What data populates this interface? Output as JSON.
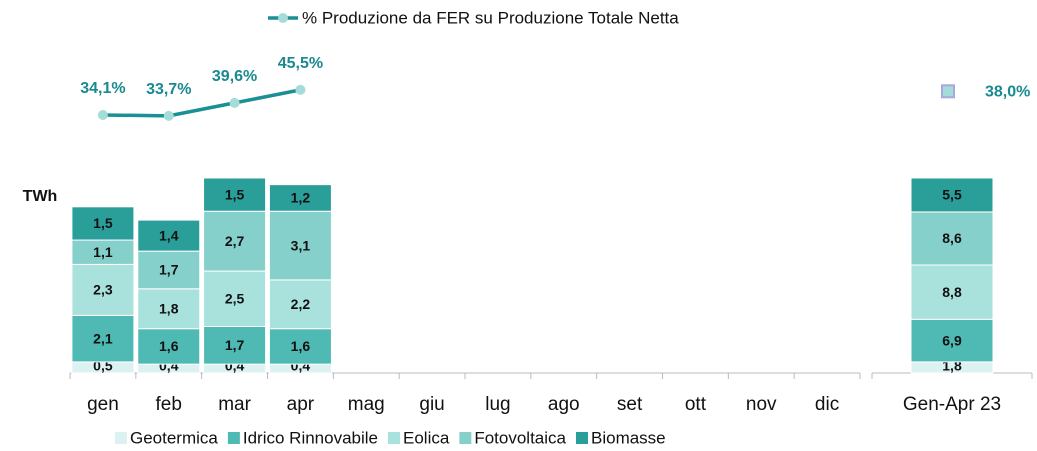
{
  "chart_data": [
    {
      "type": "bar",
      "stacked": true,
      "y_label": "TWh",
      "categories": [
        "gen",
        "feb",
        "mar",
        "apr",
        "mag",
        "giu",
        "lug",
        "ago",
        "set",
        "ott",
        "nov",
        "dic"
      ],
      "series": [
        {
          "name": "Geotermica",
          "color": "#dcf1f1",
          "values": [
            0.5,
            0.4,
            0.4,
            0.4,
            null,
            null,
            null,
            null,
            null,
            null,
            null,
            null
          ],
          "value_labels": [
            "0,5",
            "0,4",
            "0,4",
            "0,4",
            null,
            null,
            null,
            null,
            null,
            null,
            null,
            null
          ]
        },
        {
          "name": "Idrico Rinnovabile",
          "color": "#4fb9b4",
          "values": [
            2.1,
            1.6,
            1.7,
            1.6,
            null,
            null,
            null,
            null,
            null,
            null,
            null,
            null
          ],
          "value_labels": [
            "2,1",
            "1,6",
            "1,7",
            "1,6",
            null,
            null,
            null,
            null,
            null,
            null,
            null,
            null
          ]
        },
        {
          "name": "Eolica",
          "color": "#a9e1dd",
          "values": [
            2.3,
            1.8,
            2.5,
            2.2,
            null,
            null,
            null,
            null,
            null,
            null,
            null,
            null
          ],
          "value_labels": [
            "2,3",
            "1,8",
            "2,5",
            "2,2",
            null,
            null,
            null,
            null,
            null,
            null,
            null,
            null
          ]
        },
        {
          "name": "Fotovoltaica",
          "color": "#86d0cc",
          "values": [
            1.1,
            1.7,
            2.7,
            3.1,
            null,
            null,
            null,
            null,
            null,
            null,
            null,
            null
          ],
          "value_labels": [
            "1,1",
            "1,7",
            "2,7",
            "3,1",
            null,
            null,
            null,
            null,
            null,
            null,
            null,
            null
          ]
        },
        {
          "name": "Biomasse",
          "color": "#2a9f9a",
          "values": [
            1.5,
            1.4,
            1.5,
            1.2,
            null,
            null,
            null,
            null,
            null,
            null,
            null,
            null
          ],
          "value_labels": [
            "1,5",
            "1,4",
            "1,5",
            "1,2",
            null,
            null,
            null,
            null,
            null,
            null,
            null,
            null
          ]
        },
        {
          "name": "% Produzione da FER su Produzione Totale Netta",
          "type": "line",
          "color": "#1a8f94",
          "values": [
            34.1,
            33.7,
            39.6,
            45.5,
            null,
            null,
            null,
            null,
            null,
            null,
            null,
            null
          ],
          "value_labels": [
            "34,1%",
            "33,7%",
            "39,6%",
            "45,5%",
            null,
            null,
            null,
            null,
            null,
            null,
            null,
            null
          ]
        }
      ]
    },
    {
      "type": "bar",
      "stacked": true,
      "categories": [
        "Gen-Apr 23"
      ],
      "series": [
        {
          "color": "#dcf1f1",
          "values": [
            1.8
          ],
          "value_labels": [
            "1,8"
          ]
        },
        {
          "color": "#4fb9b4",
          "values": [
            6.9
          ],
          "value_labels": [
            "6,9"
          ]
        },
        {
          "color": "#a9e1dd",
          "values": [
            8.8
          ],
          "value_labels": [
            "8,8"
          ]
        },
        {
          "color": "#86d0cc",
          "values": [
            8.6
          ],
          "value_labels": [
            "8,6"
          ]
        },
        {
          "color": "#2a9f9a",
          "values": [
            5.5
          ],
          "value_labels": [
            "5,5"
          ]
        },
        {
          "type": "line",
          "color": "#1a8f94",
          "values": [
            38.0
          ],
          "value_labels": [
            "38,0%"
          ]
        }
      ]
    }
  ]
}
